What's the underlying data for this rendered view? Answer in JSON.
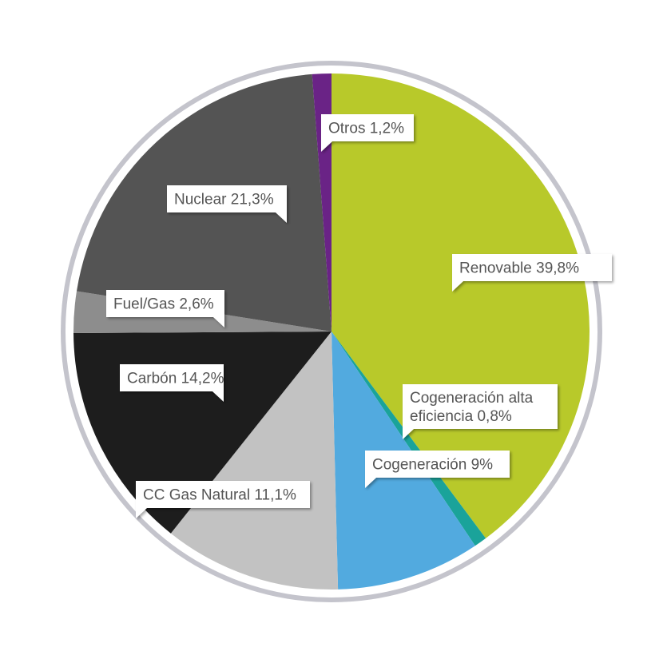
{
  "chart_data": {
    "type": "pie",
    "title": "",
    "slices": [
      {
        "label": [
          "Renovable 39,8%"
        ],
        "value": 39.8,
        "color": "#b8c92a"
      },
      {
        "label": [
          "Cogeneración alta",
          "eficiencia 0,8%"
        ],
        "value": 0.8,
        "color": "#1aa39a"
      },
      {
        "label": [
          "Cogeneración 9%"
        ],
        "value": 9.0,
        "color": "#52aadf"
      },
      {
        "label": [
          "CC Gas Natural 11,1%"
        ],
        "value": 11.1,
        "color": "#c2c2c2"
      },
      {
        "label": [
          "Carbón 14,2%"
        ],
        "value": 14.2,
        "color": "#1d1d1d"
      },
      {
        "label": [
          "Fuel/Gas 2,6%"
        ],
        "value": 2.6,
        "color": "#8d8d8d"
      },
      {
        "label": [
          "Nuclear 21,3%"
        ],
        "value": 21.3,
        "color": "#545454"
      },
      {
        "label": [
          "Otros 1,2%"
        ],
        "value": 1.2,
        "color": "#6a2386"
      }
    ],
    "ring_color": "#c4c4cc"
  }
}
